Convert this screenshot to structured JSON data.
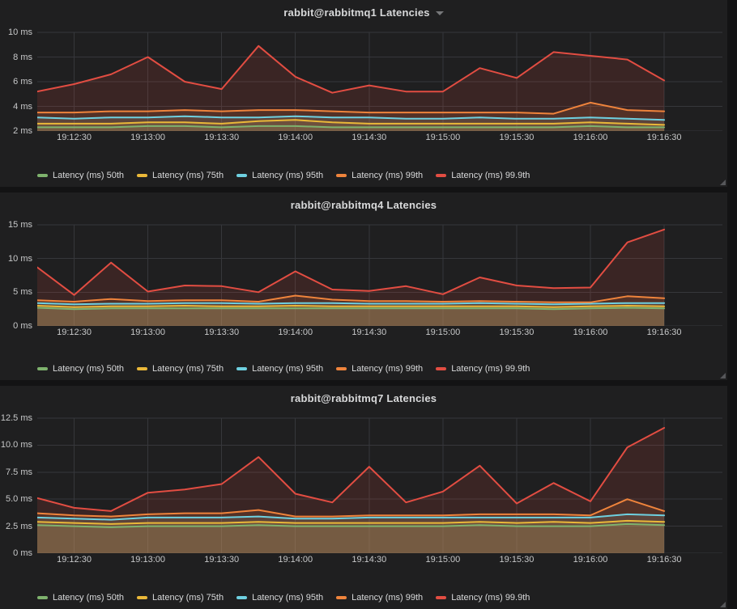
{
  "page": {
    "background": "#131314",
    "panel_background": "#1f1f20",
    "grid_color": "#36373b",
    "text_color": "#d8d9da",
    "tick_text_color": "#c7c8c9"
  },
  "series_colors": {
    "p50": "#7EB26D",
    "p75": "#EAB839",
    "p95": "#6ED0E0",
    "p99": "#EF843C",
    "p999": "#E24D42"
  },
  "panels_ui": [
    {
      "menu_caret": true
    },
    {
      "menu_caret": false
    },
    {
      "menu_caret": false
    }
  ],
  "chart_data": [
    {
      "type": "area",
      "title": "rabbit@rabbitmq1 Latencies",
      "xlabel": "",
      "ylabel": "",
      "unit": "ms",
      "grid": true,
      "legend_position": "bottom",
      "ylim": [
        2,
        10
      ],
      "yticks": [
        2,
        4,
        6,
        8,
        10
      ],
      "ytick_labels": [
        "2 ms",
        "4 ms",
        "6 ms",
        "8 ms",
        "10 ms"
      ],
      "x": [
        "19:12:15",
        "19:12:30",
        "19:12:45",
        "19:13:00",
        "19:13:15",
        "19:13:30",
        "19:13:45",
        "19:14:00",
        "19:14:15",
        "19:14:30",
        "19:14:45",
        "19:15:00",
        "19:15:15",
        "19:15:30",
        "19:15:45",
        "19:16:00",
        "19:16:15",
        "19:16:30"
      ],
      "x_tick_labels": [
        "19:12:30",
        "19:13:00",
        "19:13:30",
        "19:14:00",
        "19:14:30",
        "19:15:00",
        "19:15:30",
        "19:16:00",
        "19:16:30"
      ],
      "series": [
        {
          "name": "Latency (ms) 50th",
          "color": "#7EB26D",
          "values": [
            2.3,
            2.3,
            2.3,
            2.4,
            2.4,
            2.3,
            2.4,
            2.4,
            2.3,
            2.3,
            2.3,
            2.3,
            2.3,
            2.3,
            2.3,
            2.4,
            2.3,
            2.3
          ]
        },
        {
          "name": "Latency (ms) 75th",
          "color": "#EAB839",
          "values": [
            2.6,
            2.6,
            2.6,
            2.7,
            2.7,
            2.6,
            2.8,
            2.9,
            2.7,
            2.6,
            2.6,
            2.6,
            2.6,
            2.6,
            2.6,
            2.7,
            2.6,
            2.5
          ]
        },
        {
          "name": "Latency (ms) 95th",
          "color": "#6ED0E0",
          "values": [
            3.1,
            3.0,
            3.1,
            3.1,
            3.2,
            3.1,
            3.1,
            3.2,
            3.1,
            3.1,
            3.0,
            3.0,
            3.1,
            3.0,
            3.0,
            3.1,
            3.0,
            2.9
          ]
        },
        {
          "name": "Latency (ms) 99th",
          "color": "#EF843C",
          "values": [
            3.5,
            3.5,
            3.6,
            3.6,
            3.7,
            3.6,
            3.7,
            3.7,
            3.6,
            3.5,
            3.5,
            3.5,
            3.5,
            3.5,
            3.4,
            4.3,
            3.7,
            3.6
          ]
        },
        {
          "name": "Latency (ms) 99.9th",
          "color": "#E24D42",
          "values": [
            5.2,
            5.8,
            6.6,
            8.0,
            6.0,
            5.4,
            8.9,
            6.4,
            5.1,
            5.7,
            5.2,
            5.2,
            7.1,
            6.3,
            8.4,
            8.1,
            7.8,
            6.1
          ]
        }
      ]
    },
    {
      "type": "area",
      "title": "rabbit@rabbitmq4 Latencies",
      "xlabel": "",
      "ylabel": "",
      "unit": "ms",
      "grid": true,
      "legend_position": "bottom",
      "ylim": [
        0,
        15
      ],
      "yticks": [
        0,
        5,
        10,
        15
      ],
      "ytick_labels": [
        "0 ms",
        "5 ms",
        "10 ms",
        "15 ms"
      ],
      "x": [
        "19:12:15",
        "19:12:30",
        "19:12:45",
        "19:13:00",
        "19:13:15",
        "19:13:30",
        "19:13:45",
        "19:14:00",
        "19:14:15",
        "19:14:30",
        "19:14:45",
        "19:15:00",
        "19:15:15",
        "19:15:30",
        "19:15:45",
        "19:16:00",
        "19:16:15",
        "19:16:30"
      ],
      "x_tick_labels": [
        "19:12:30",
        "19:13:00",
        "19:13:30",
        "19:14:00",
        "19:14:30",
        "19:15:00",
        "19:15:30",
        "19:16:00",
        "19:16:30"
      ],
      "series": [
        {
          "name": "Latency (ms) 50th",
          "color": "#7EB26D",
          "values": [
            2.7,
            2.5,
            2.6,
            2.6,
            2.6,
            2.6,
            2.6,
            2.6,
            2.6,
            2.6,
            2.6,
            2.6,
            2.6,
            2.6,
            2.5,
            2.6,
            2.7,
            2.6
          ]
        },
        {
          "name": "Latency (ms) 75th",
          "color": "#EAB839",
          "values": [
            3.0,
            2.8,
            2.9,
            2.9,
            3.0,
            2.9,
            2.9,
            3.0,
            2.9,
            2.9,
            2.9,
            2.9,
            2.9,
            2.9,
            2.8,
            2.9,
            3.0,
            2.9
          ]
        },
        {
          "name": "Latency (ms) 95th",
          "color": "#6ED0E0",
          "values": [
            3.4,
            3.2,
            3.3,
            3.3,
            3.4,
            3.4,
            3.3,
            3.4,
            3.4,
            3.3,
            3.3,
            3.3,
            3.4,
            3.3,
            3.2,
            3.3,
            3.4,
            3.4
          ]
        },
        {
          "name": "Latency (ms) 99th",
          "color": "#EF843C",
          "values": [
            3.8,
            3.6,
            4.0,
            3.7,
            3.8,
            3.8,
            3.6,
            4.5,
            3.9,
            3.7,
            3.7,
            3.6,
            3.7,
            3.6,
            3.5,
            3.5,
            4.4,
            4.1
          ]
        },
        {
          "name": "Latency (ms) 99.9th",
          "color": "#E24D42",
          "values": [
            8.7,
            4.6,
            9.4,
            5.1,
            6.0,
            5.9,
            5.0,
            8.1,
            5.4,
            5.2,
            5.9,
            4.7,
            7.2,
            6.0,
            5.6,
            5.7,
            12.4,
            14.3
          ]
        }
      ]
    },
    {
      "type": "area",
      "title": "rabbit@rabbitmq7 Latencies",
      "xlabel": "",
      "ylabel": "",
      "unit": "ms",
      "grid": true,
      "legend_position": "bottom",
      "ylim": [
        0,
        12.5
      ],
      "yticks": [
        0,
        2.5,
        5.0,
        7.5,
        10.0,
        12.5
      ],
      "ytick_labels": [
        "0 ms",
        "2.5 ms",
        "5.0 ms",
        "7.5 ms",
        "10.0 ms",
        "12.5 ms"
      ],
      "x": [
        "19:12:15",
        "19:12:30",
        "19:12:45",
        "19:13:00",
        "19:13:15",
        "19:13:30",
        "19:13:45",
        "19:14:00",
        "19:14:15",
        "19:14:30",
        "19:14:45",
        "19:15:00",
        "19:15:15",
        "19:15:30",
        "19:15:45",
        "19:16:00",
        "19:16:15",
        "19:16:30"
      ],
      "x_tick_labels": [
        "19:12:30",
        "19:13:00",
        "19:13:30",
        "19:14:00",
        "19:14:30",
        "19:15:00",
        "19:15:30",
        "19:16:00",
        "19:16:30"
      ],
      "series": [
        {
          "name": "Latency (ms) 50th",
          "color": "#7EB26D",
          "values": [
            2.6,
            2.5,
            2.4,
            2.5,
            2.5,
            2.5,
            2.6,
            2.5,
            2.5,
            2.5,
            2.5,
            2.5,
            2.6,
            2.5,
            2.5,
            2.5,
            2.7,
            2.6
          ]
        },
        {
          "name": "Latency (ms) 75th",
          "color": "#EAB839",
          "values": [
            2.9,
            2.8,
            2.7,
            2.8,
            2.8,
            2.8,
            2.9,
            2.8,
            2.8,
            2.8,
            2.8,
            2.8,
            2.9,
            2.8,
            2.9,
            2.8,
            3.0,
            2.9
          ]
        },
        {
          "name": "Latency (ms) 95th",
          "color": "#6ED0E0",
          "values": [
            3.3,
            3.2,
            3.1,
            3.3,
            3.3,
            3.3,
            3.4,
            3.2,
            3.2,
            3.3,
            3.3,
            3.3,
            3.3,
            3.3,
            3.3,
            3.3,
            3.6,
            3.5
          ]
        },
        {
          "name": "Latency (ms) 99th",
          "color": "#EF843C",
          "values": [
            3.7,
            3.5,
            3.4,
            3.6,
            3.7,
            3.7,
            4.0,
            3.4,
            3.4,
            3.5,
            3.5,
            3.5,
            3.6,
            3.6,
            3.6,
            3.5,
            5.0,
            3.9
          ]
        },
        {
          "name": "Latency (ms) 99.9th",
          "color": "#E24D42",
          "values": [
            5.1,
            4.2,
            3.9,
            5.6,
            5.9,
            6.4,
            8.9,
            5.5,
            4.7,
            8.0,
            4.7,
            5.7,
            8.1,
            4.6,
            6.5,
            4.8,
            9.8,
            11.6
          ]
        }
      ]
    }
  ]
}
